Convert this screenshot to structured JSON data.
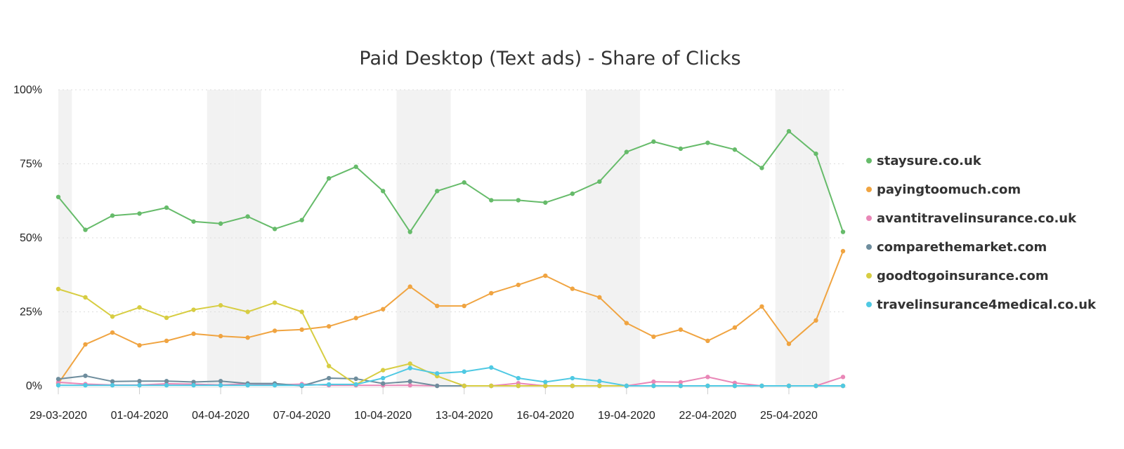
{
  "chart_data": {
    "type": "line",
    "title": "Paid Desktop (Text ads) - Share of Clicks",
    "xlabel": "",
    "ylabel": "",
    "x": [
      "29-03-2020",
      "30-03-2020",
      "31-03-2020",
      "01-04-2020",
      "02-04-2020",
      "03-04-2020",
      "04-04-2020",
      "05-04-2020",
      "06-04-2020",
      "07-04-2020",
      "08-04-2020",
      "09-04-2020",
      "10-04-2020",
      "11-04-2020",
      "12-04-2020",
      "13-04-2020",
      "14-04-2020",
      "15-04-2020",
      "16-04-2020",
      "17-04-2020",
      "18-04-2020",
      "19-04-2020",
      "20-04-2020",
      "21-04-2020",
      "22-04-2020",
      "23-04-2020",
      "24-04-2020",
      "25-04-2020",
      "26-04-2020",
      "27-04-2020"
    ],
    "x_tick_labels": [
      "29-03-2020",
      "01-04-2020",
      "04-04-2020",
      "07-04-2020",
      "10-04-2020",
      "13-04-2020",
      "16-04-2020",
      "19-04-2020",
      "22-04-2020",
      "25-04-2020"
    ],
    "y_tick_labels": [
      "0%",
      "25%",
      "50%",
      "75%",
      "100%"
    ],
    "ylim": [
      0,
      100
    ],
    "y_unit": "%",
    "grid": true,
    "weekend_bands": true,
    "legend_position": "right",
    "series": [
      {
        "name": "staysure.co.uk",
        "color": "#66bb6a",
        "values": [
          63.8,
          52.7,
          57.5,
          58.2,
          60.2,
          55.5,
          54.8,
          57.2,
          53.0,
          56.0,
          70.1,
          74.0,
          65.8,
          52.0,
          65.8,
          68.7,
          62.7,
          62.7,
          61.9,
          64.9,
          69.0,
          79.0,
          82.5,
          80.1,
          82.1,
          79.8,
          73.6,
          86.0,
          78.4,
          52.0
        ]
      },
      {
        "name": "payingtoomuch.com",
        "color": "#f0a441",
        "values": [
          0.8,
          14.0,
          18.0,
          13.7,
          15.2,
          17.6,
          16.8,
          16.3,
          18.6,
          19.0,
          20.1,
          22.9,
          25.9,
          33.5,
          27.0,
          27.0,
          31.3,
          34.1,
          37.2,
          32.8,
          29.9,
          21.2,
          16.6,
          19.0,
          15.2,
          19.7,
          26.8,
          14.2,
          22.1,
          45.5
        ]
      },
      {
        "name": "avantitravelinsurance.co.uk",
        "color": "#e987b7",
        "values": [
          1.2,
          0.6,
          0.3,
          0.3,
          0.7,
          0.6,
          0.3,
          0.7,
          0.3,
          0.6,
          0.2,
          0.2,
          0.2,
          0.2,
          0.0,
          0.0,
          0.0,
          0.9,
          0.0,
          0.0,
          0.0,
          0.0,
          1.4,
          1.2,
          3.0,
          1.0,
          0.0,
          0.0,
          0.0,
          3.0
        ]
      },
      {
        "name": "comparethemarket.com",
        "color": "#6e8d9d",
        "values": [
          2.3,
          3.4,
          1.5,
          1.6,
          1.6,
          1.3,
          1.6,
          0.8,
          0.8,
          0.0,
          2.6,
          2.4,
          0.8,
          1.5,
          0.0,
          0.0,
          0.0,
          0.0,
          0.0,
          0.0,
          0.0,
          0.0,
          0.0,
          0.0,
          0.0,
          0.0,
          0.0,
          0.0,
          0.0,
          0.0
        ]
      },
      {
        "name": "goodtogoinsurance.com",
        "color": "#d7cd42",
        "values": [
          32.7,
          29.9,
          23.4,
          26.5,
          23.0,
          25.7,
          27.2,
          25.0,
          28.1,
          25.0,
          6.7,
          0.5,
          5.3,
          7.5,
          3.3,
          0.0,
          0.0,
          0.0,
          0.0,
          0.0,
          0.0,
          0.0,
          0.0,
          0.0,
          0.0,
          0.0,
          0.0,
          0.0,
          0.0,
          0.0
        ]
      },
      {
        "name": "travelinsurance4medical.co.uk",
        "color": "#4fc9e3",
        "values": [
          0.2,
          0.2,
          0.2,
          0.2,
          0.2,
          0.2,
          0.2,
          0.2,
          0.2,
          0.2,
          0.5,
          0.5,
          2.6,
          6.0,
          4.2,
          4.8,
          6.2,
          2.6,
          1.3,
          2.6,
          1.6,
          0.0,
          0.0,
          0.0,
          0.0,
          0.0,
          0.0,
          0.0,
          0.0,
          0.0
        ]
      }
    ]
  }
}
